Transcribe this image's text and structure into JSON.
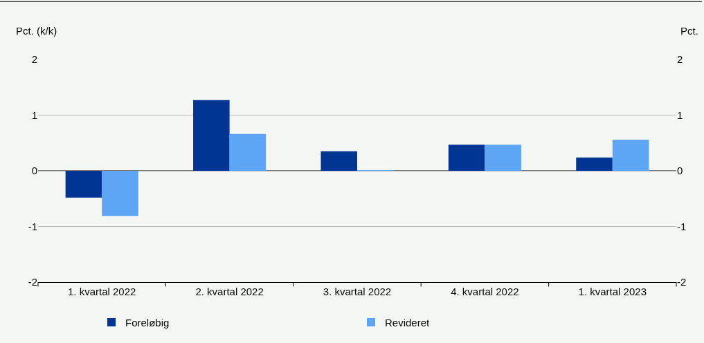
{
  "chart_data": {
    "type": "bar",
    "ylabel": "Pct. (k/k)",
    "y2label": "Pct.",
    "categories": [
      "1. kvartal 2022",
      "2. kvartal 2022",
      "3. kvartal 2022",
      "4. kvartal 2022",
      "1. kvartal 2023"
    ],
    "series": [
      {
        "name": "Foreløbig",
        "color": "#003594",
        "values": [
          -0.48,
          1.27,
          0.35,
          0.47,
          0.24
        ]
      },
      {
        "name": "Revideret",
        "color": "#5ea6f5",
        "values": [
          -0.81,
          0.66,
          0.01,
          0.47,
          0.56
        ]
      }
    ],
    "ylim": [
      -2,
      2
    ],
    "yticks": [
      -2,
      -1,
      0,
      1,
      2
    ],
    "y2lim": [
      -2,
      2
    ],
    "y2ticks": [
      -2,
      -1,
      0,
      1,
      2
    ],
    "grid": "y",
    "legend": "bottom"
  }
}
